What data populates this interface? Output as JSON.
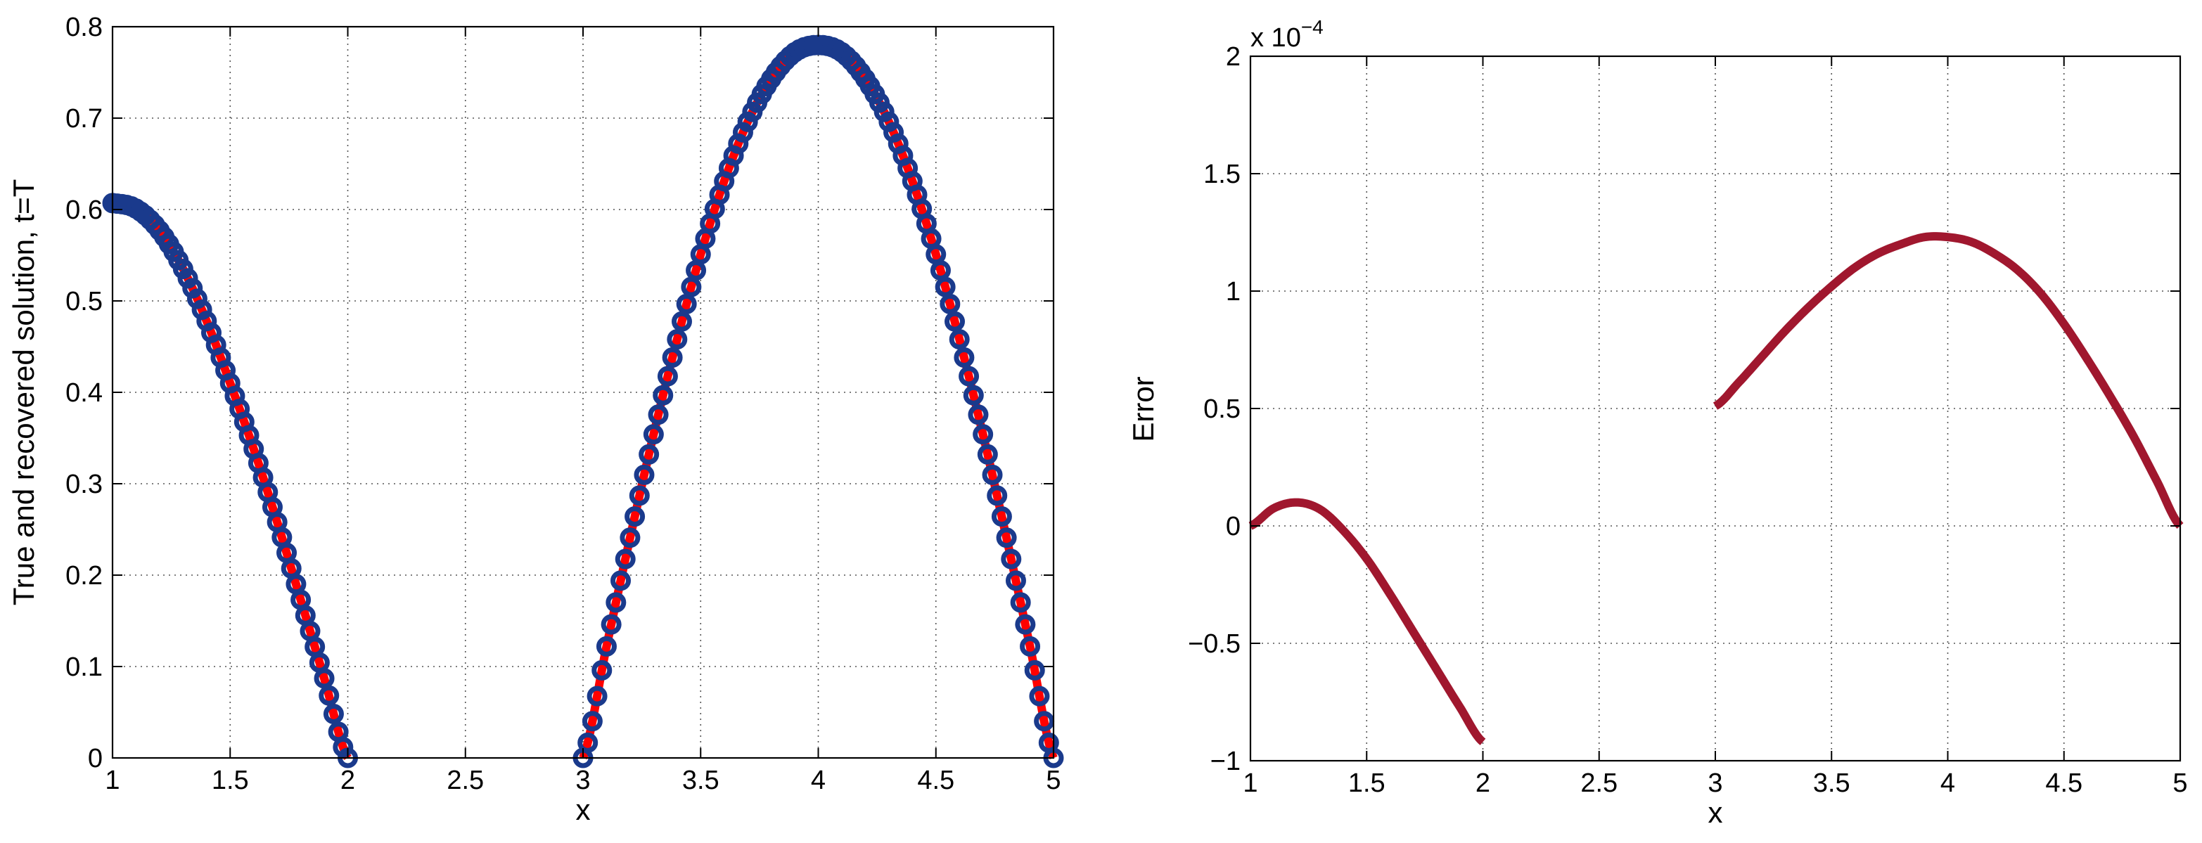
{
  "chart_data": [
    {
      "type": "line",
      "xlabel": "x",
      "ylabel": "True and recovered solution, t=T",
      "xlim": [
        1,
        5
      ],
      "ylim": [
        0,
        0.8
      ],
      "xticks": [
        1,
        1.5,
        2,
        2.5,
        3,
        3.5,
        4,
        4.5,
        5
      ],
      "xtick_labels": [
        "1",
        "1.5",
        "2",
        "2.5",
        "3",
        "3.5",
        "4",
        "4.5",
        "5"
      ],
      "yticks": [
        0,
        0.1,
        0.2,
        0.3,
        0.4,
        0.5,
        0.6,
        0.7,
        0.8
      ],
      "ytick_labels": [
        "0",
        "0.1",
        "0.2",
        "0.3",
        "0.4",
        "0.5",
        "0.6",
        "0.7",
        "0.8"
      ],
      "grid": true,
      "series": [
        {
          "style": "solid line",
          "color": "#ff0000",
          "segments": [
            {
              "x": [
                1.0,
                1.1,
                1.2,
                1.3,
                1.4,
                1.5,
                1.6,
                1.7,
                1.8,
                1.9,
                2.0
              ],
              "y": [
                0.607,
                0.601,
                0.577,
                0.535,
                0.478,
                0.41,
                0.338,
                0.258,
                0.173,
                0.087,
                0.0
              ]
            },
            {
              "x": [
                3.0,
                3.1,
                3.2,
                3.3,
                3.4,
                3.5,
                3.6,
                3.7,
                3.8,
                3.9,
                4.0,
                4.1,
                4.2,
                4.3,
                4.4,
                4.5,
                4.6,
                4.7,
                4.8,
                4.9,
                5.0
              ],
              "y": [
                0.0,
                0.122,
                0.241,
                0.354,
                0.458,
                0.551,
                0.631,
                0.696,
                0.743,
                0.772,
                0.78,
                0.772,
                0.743,
                0.696,
                0.631,
                0.551,
                0.458,
                0.354,
                0.241,
                0.122,
                0.0
              ]
            }
          ]
        },
        {
          "style": "circle markers",
          "color": "#1a3a8c",
          "marker_spacing": 0.02,
          "segments": [
            {
              "x": [
                1.0,
                1.1,
                1.2,
                1.3,
                1.4,
                1.5,
                1.6,
                1.7,
                1.8,
                1.9,
                2.0
              ],
              "y": [
                0.607,
                0.601,
                0.577,
                0.535,
                0.478,
                0.41,
                0.338,
                0.258,
                0.173,
                0.087,
                0.0
              ]
            },
            {
              "x": [
                3.0,
                3.1,
                3.2,
                3.3,
                3.4,
                3.5,
                3.6,
                3.7,
                3.8,
                3.9,
                4.0,
                4.1,
                4.2,
                4.3,
                4.4,
                4.5,
                4.6,
                4.7,
                4.8,
                4.9,
                5.0
              ],
              "y": [
                0.0,
                0.122,
                0.241,
                0.354,
                0.458,
                0.551,
                0.631,
                0.696,
                0.743,
                0.772,
                0.78,
                0.772,
                0.743,
                0.696,
                0.631,
                0.551,
                0.458,
                0.354,
                0.241,
                0.122,
                0.0
              ]
            }
          ]
        }
      ]
    },
    {
      "type": "line",
      "xlabel": "x",
      "ylabel": "Error",
      "scale_label": "x 10",
      "scale_exponent": "−4",
      "xlim": [
        1,
        5
      ],
      "ylim": [
        -1,
        2
      ],
      "xticks": [
        1,
        1.5,
        2,
        2.5,
        3,
        3.5,
        4,
        4.5,
        5
      ],
      "xtick_labels": [
        "1",
        "1.5",
        "2",
        "2.5",
        "3",
        "3.5",
        "4",
        "4.5",
        "5"
      ],
      "yticks": [
        -1,
        -0.5,
        0,
        0.5,
        1,
        1.5,
        2
      ],
      "ytick_labels": [
        "−1",
        "−0.5",
        "0",
        "0.5",
        "1",
        "1.5",
        "2"
      ],
      "grid": true,
      "series": [
        {
          "style": "solid line",
          "color": "#a0172e",
          "segments": [
            {
              "x": [
                1.0,
                1.1,
                1.2,
                1.3,
                1.4,
                1.5,
                1.6,
                1.7,
                1.8,
                1.9,
                2.0
              ],
              "y": [
                0.0,
                0.075,
                0.1,
                0.07,
                -0.02,
                -0.14,
                -0.29,
                -0.45,
                -0.61,
                -0.77,
                -0.92
              ]
            },
            {
              "x": [
                3.0,
                3.1,
                3.2,
                3.3,
                3.4,
                3.5,
                3.6,
                3.7,
                3.8,
                3.9,
                4.0,
                4.1,
                4.2,
                4.3,
                4.4,
                4.5,
                4.6,
                4.7,
                4.8,
                4.9,
                5.0
              ],
              "y": [
                0.51,
                0.61,
                0.72,
                0.83,
                0.93,
                1.02,
                1.1,
                1.16,
                1.2,
                1.23,
                1.23,
                1.21,
                1.16,
                1.09,
                0.99,
                0.86,
                0.71,
                0.55,
                0.38,
                0.19,
                0.0
              ]
            }
          ]
        }
      ]
    }
  ]
}
